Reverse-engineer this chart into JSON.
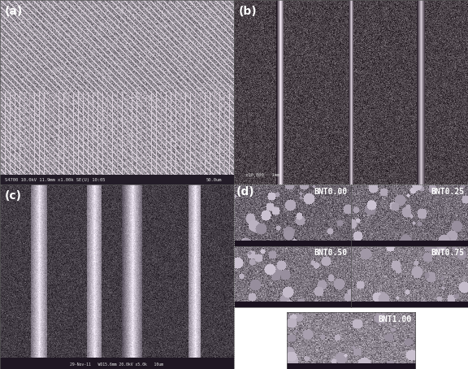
{
  "figure_width": 5.76,
  "figure_height": 4.54,
  "dpi": 100,
  "background_color": "#ffffff",
  "panel_labels": [
    "(a)",
    "(b)",
    "(c)",
    "(d)"
  ],
  "panel_label_color": "#ffffff",
  "panel_label_fontsize": 10,
  "bnt_labels": [
    "BNT0.00",
    "BNT0.25",
    "BNT0.50",
    "BNT0.75",
    "BNT1.00"
  ],
  "bnt_label_color": "#ffffff",
  "bnt_label_fontsize": 7,
  "border_color": "#000000",
  "outer_border_color": "#a0a0a0",
  "scale_bar_text_a": "50.0um",
  "scale_bar_text_b": "x10,000   1mm",
  "scale_bar_text_c": "29-Nov-11   WD15.6mm 20.0kV x5.0k   10um",
  "metadata_a": "S4700 10.0kV 11.9mm x1.00k SE(U) 10:05",
  "sem_noise_seed": 42,
  "panel_a_color_bg": [
    160,
    155,
    160
  ],
  "panel_b_color_bg": [
    80,
    78,
    82
  ],
  "panel_c_color_bg": [
    70,
    68,
    72
  ],
  "panel_d_color_bg": [
    120,
    118,
    122
  ],
  "dotted_border": true
}
